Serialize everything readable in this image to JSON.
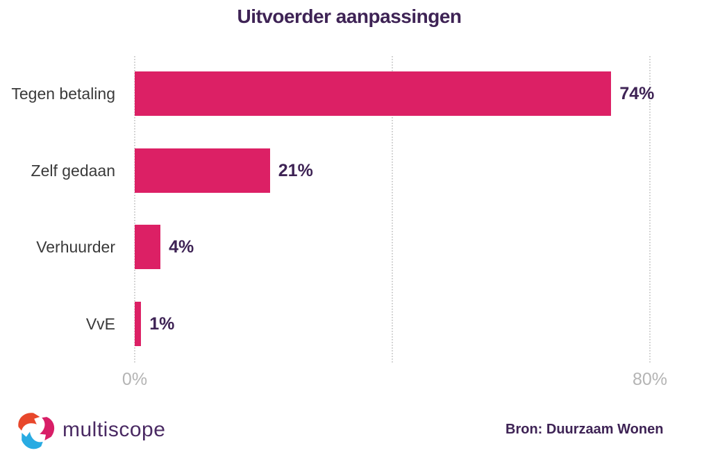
{
  "title": "Uitvoerder aanpassingen",
  "chart_data": {
    "type": "bar",
    "orientation": "horizontal",
    "title": "Uitvoerder aanpassingen",
    "categories": [
      "Tegen betaling",
      "Zelf gedaan",
      "Verhuurder",
      "VvE"
    ],
    "values": [
      74,
      21,
      4,
      1
    ],
    "value_labels": [
      "74%",
      "21%",
      "4%",
      "1%"
    ],
    "xlim": [
      0,
      80
    ],
    "x_ticks": [
      {
        "value": 0,
        "label": "0%"
      },
      {
        "value": 40,
        "label": ""
      },
      {
        "value": 80,
        "label": "80%"
      }
    ],
    "gridlines": [
      0,
      40,
      80
    ],
    "grid_style": "dotted",
    "legend": "none",
    "bar_color": "#DC2065"
  },
  "footer": {
    "logo_text": "multiscope",
    "source": "Bron: Duurzaam Wonen"
  },
  "colors": {
    "title_purple": "#3E2355",
    "bar_pink": "#DC2065",
    "category_gray": "#3A3A3A",
    "axis_gray": "#B4B4B4",
    "grid_gray": "#C8C8C8",
    "logo_purple": "#4A2A63",
    "logo_orange": "#E8472B",
    "logo_pink": "#D81E67",
    "logo_blue": "#29ABE2"
  }
}
